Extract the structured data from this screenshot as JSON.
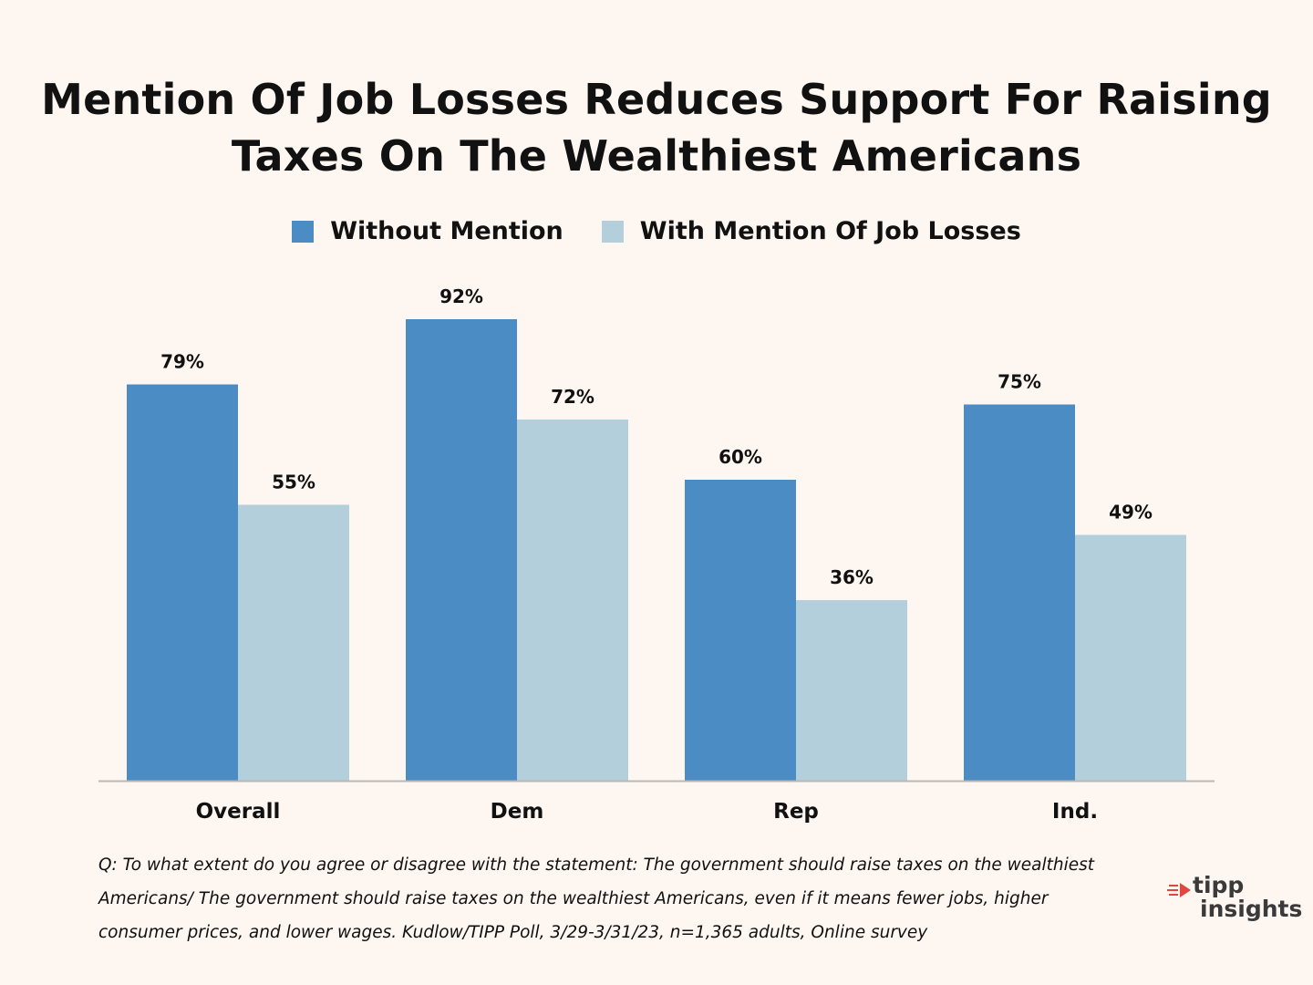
{
  "title_line1": "Mention Of Job Losses Reduces Support For Raising",
  "title_line2": "Taxes On The Wealthiest Americans",
  "colors": {
    "background": "#fdf6f1",
    "series1": "#4a8cc3",
    "series2": "#b4cfdc",
    "axis": "#b8b8b8",
    "logo_accent": "#e0483f"
  },
  "chart_data": {
    "type": "bar",
    "title": "Mention Of Job Losses Reduces Support For Raising Taxes On The Wealthiest Americans",
    "categories": [
      "Overall",
      "Dem",
      "Rep",
      "Ind."
    ],
    "series": [
      {
        "name": "Without Mention",
        "values": [
          79,
          92,
          60,
          75
        ],
        "labels": [
          "79%",
          "92%",
          "60%",
          "75%"
        ]
      },
      {
        "name": "With Mention Of Job Losses",
        "values": [
          55,
          72,
          36,
          49
        ],
        "labels": [
          "55%",
          "72%",
          "36%",
          "49%"
        ]
      }
    ],
    "xlabel": "",
    "ylabel": "",
    "ylim": [
      0,
      100
    ],
    "grid": false,
    "legend": "top-center"
  },
  "footnote": {
    "line1": "Q:  To what extent do you agree or disagree with the statement: The government should raise taxes on the wealthiest",
    "line2": "Americans/ The government should raise taxes on the wealthiest Americans, even if it means fewer jobs, higher",
    "line3": "consumer prices, and lower wages. Kudlow/TIPP Poll, 3/29-3/31/23, n=1,365 adults, Online survey"
  },
  "logo": {
    "word1": "tipp",
    "word2": "insights",
    "icon": "arrow-lines-icon"
  }
}
